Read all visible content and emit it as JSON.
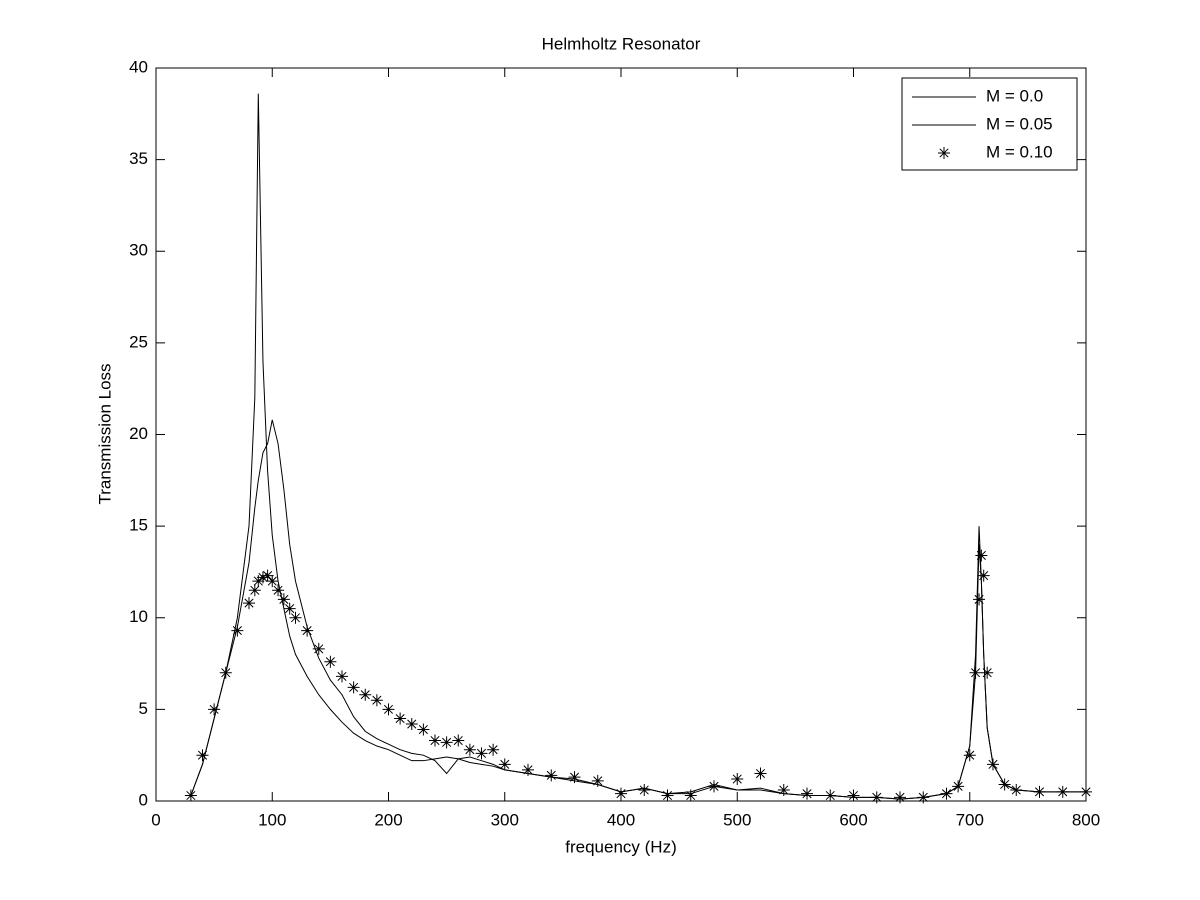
{
  "chart_data": {
    "type": "line",
    "title": "Helmholtz Resonator",
    "xlabel": "frequency (Hz)",
    "ylabel": "Transmission Loss",
    "x": [
      30,
      40,
      50,
      60,
      70,
      80,
      85,
      88,
      92,
      96,
      100,
      105,
      110,
      115,
      120,
      130,
      140,
      150,
      160,
      170,
      180,
      190,
      200,
      210,
      220,
      230,
      240,
      250,
      260,
      270,
      280,
      290,
      300,
      320,
      340,
      360,
      380,
      400,
      420,
      440,
      460,
      480,
      500,
      520,
      540,
      560,
      580,
      600,
      620,
      640,
      660,
      680,
      690,
      700,
      705,
      708,
      710,
      712,
      715,
      720,
      730,
      740,
      760,
      780,
      800
    ],
    "series": [
      {
        "name": "M = 0.0",
        "color": "#000000",
        "marker": "line",
        "values": [
          0.3,
          2,
          4.5,
          7,
          10,
          15,
          22,
          38.6,
          24,
          18,
          14.5,
          12,
          10.5,
          9,
          8,
          6.8,
          5.8,
          5,
          4.3,
          3.7,
          3.3,
          3,
          2.8,
          2.5,
          2.2,
          2.2,
          2.3,
          2.4,
          2.3,
          2.1,
          2,
          1.9,
          1.7,
          1.5,
          1.3,
          1.1,
          0.9,
          0.5,
          0.7,
          0.4,
          0.4,
          0.8,
          0.6,
          0.6,
          0.4,
          0.3,
          0.3,
          0.2,
          0.2,
          0.1,
          0.2,
          0.4,
          0.8,
          3,
          8,
          15,
          12,
          8,
          4,
          2,
          0.9,
          0.6,
          0.5,
          0.5,
          0.5
        ]
      },
      {
        "name": "M = 0.05",
        "color": "#000000",
        "marker": "line",
        "values": [
          0.3,
          2,
          4.5,
          7,
          9.5,
          13,
          16,
          17.5,
          19,
          19.5,
          20.8,
          19.5,
          17,
          14,
          12,
          9.5,
          7.8,
          6.6,
          5.8,
          4.6,
          3.8,
          3.4,
          3.1,
          2.8,
          2.6,
          2.5,
          2.2,
          1.5,
          2.3,
          2.4,
          2.2,
          2,
          1.7,
          1.5,
          1.3,
          1.2,
          0.9,
          0.5,
          0.7,
          0.4,
          0.5,
          0.9,
          0.6,
          0.7,
          0.4,
          0.3,
          0.3,
          0.2,
          0.2,
          0.1,
          0.2,
          0.4,
          0.8,
          3,
          7,
          14,
          12,
          8,
          4,
          2,
          0.9,
          0.6,
          0.5,
          0.5,
          0.5
        ]
      },
      {
        "name": "M = 0.10",
        "color": "#000000",
        "marker": "star",
        "values": [
          0.3,
          2.5,
          5,
          7,
          9.3,
          10.8,
          11.5,
          12,
          12.2,
          12.3,
          12,
          11.5,
          11,
          10.5,
          10,
          9.3,
          8.3,
          7.6,
          6.8,
          6.2,
          5.8,
          5.5,
          5,
          4.5,
          4.2,
          3.9,
          3.3,
          3.2,
          3.3,
          2.8,
          2.6,
          2.8,
          2,
          1.7,
          1.4,
          1.3,
          1.1,
          0.4,
          0.6,
          0.3,
          0.3,
          0.8,
          1.2,
          1.5,
          0.6,
          0.4,
          0.3,
          0.3,
          0.2,
          0.2,
          0.2,
          0.4,
          0.8,
          2.5,
          7,
          11,
          13.4,
          12.3,
          7,
          2,
          0.9,
          0.6,
          0.5,
          0.5,
          0.5
        ]
      }
    ],
    "xlim": [
      0,
      800
    ],
    "xticks": [
      0,
      100,
      200,
      300,
      400,
      500,
      600,
      700,
      800
    ],
    "ylim": [
      0,
      40
    ],
    "yticks": [
      0,
      5,
      10,
      15,
      20,
      25,
      30,
      35,
      40
    ],
    "grid": false,
    "legend": "upper right"
  }
}
